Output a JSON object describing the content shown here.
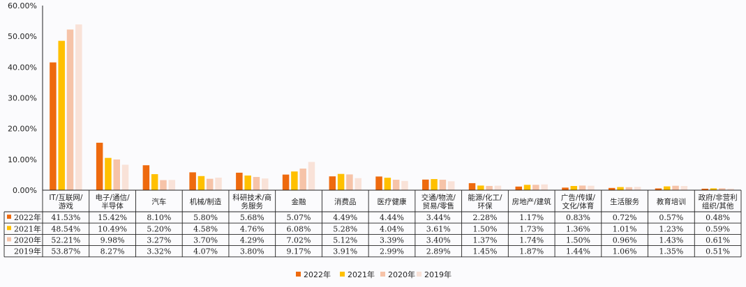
{
  "chart_data": {
    "type": "bar",
    "title": "",
    "xlabel": "",
    "ylabel": "",
    "ylim": [
      0,
      60
    ],
    "yticks": [
      "0.00%",
      "10.00%",
      "20.00%",
      "30.00%",
      "40.00%",
      "50.00%",
      "60.00%"
    ],
    "grid": false,
    "legend_position": "bottom",
    "categories": [
      [
        "IT/互联网/",
        "游戏"
      ],
      [
        "电子/通信/",
        "半导体"
      ],
      [
        "汽车"
      ],
      [
        "机械/制造"
      ],
      [
        "科研技术/商",
        "务服务"
      ],
      [
        "金融"
      ],
      [
        "消费品"
      ],
      [
        "医疗健康"
      ],
      [
        "交通/物流/",
        "贸易/零售"
      ],
      [
        "能源/化工/",
        "环保"
      ],
      [
        "房地产/建筑"
      ],
      [
        "广告/传媒/",
        "文化/体育"
      ],
      [
        "生活服务"
      ],
      [
        "教育培训"
      ],
      [
        "政府/非营利",
        "组织/其他"
      ]
    ],
    "series": [
      {
        "name": "2022年",
        "color": "#ee6a0e",
        "values": [
          41.53,
          15.42,
          8.1,
          5.8,
          5.68,
          5.07,
          4.49,
          4.44,
          3.44,
          2.28,
          1.17,
          0.83,
          0.72,
          0.57,
          0.48
        ],
        "labels": [
          "41.53%",
          "15.42%",
          "8.10%",
          "5.80%",
          "5.68%",
          "5.07%",
          "4.49%",
          "4.44%",
          "3.44%",
          "2.28%",
          "1.17%",
          "0.83%",
          "0.72%",
          "0.57%",
          "0.48%"
        ]
      },
      {
        "name": "2021年",
        "color": "#ffc000",
        "values": [
          48.54,
          10.49,
          5.2,
          4.58,
          4.76,
          6.08,
          5.28,
          4.04,
          3.61,
          1.5,
          1.73,
          1.36,
          1.01,
          1.23,
          0.59
        ],
        "labels": [
          "48.54%",
          "10.49%",
          "5.20%",
          "4.58%",
          "4.76%",
          "6.08%",
          "5.28%",
          "4.04%",
          "3.61%",
          "1.50%",
          "1.73%",
          "1.36%",
          "1.01%",
          "1.23%",
          "0.59%"
        ]
      },
      {
        "name": "2020年",
        "color": "#f6c3a8",
        "values": [
          52.21,
          9.98,
          3.27,
          3.7,
          4.29,
          7.02,
          5.12,
          3.39,
          3.4,
          1.37,
          1.74,
          1.5,
          0.96,
          1.43,
          0.61
        ],
        "labels": [
          "52.21%",
          "9.98%",
          "3.27%",
          "3.70%",
          "4.29%",
          "7.02%",
          "5.12%",
          "3.39%",
          "3.40%",
          "1.37%",
          "1.74%",
          "1.50%",
          "0.96%",
          "1.43%",
          "0.61%"
        ]
      },
      {
        "name": "2019年",
        "color": "#f9e2d8",
        "values": [
          53.87,
          8.27,
          3.32,
          4.07,
          3.8,
          9.17,
          3.91,
          2.99,
          2.89,
          1.45,
          1.87,
          1.44,
          1.06,
          1.35,
          0.51
        ],
        "labels": [
          "53.87%",
          "8.27%",
          "3.32%",
          "4.07%",
          "3.80%",
          "9.17%",
          "3.91%",
          "2.99%",
          "2.89%",
          "1.45%",
          "1.87%",
          "1.44%",
          "1.06%",
          "1.35%",
          "0.51%"
        ]
      }
    ]
  }
}
